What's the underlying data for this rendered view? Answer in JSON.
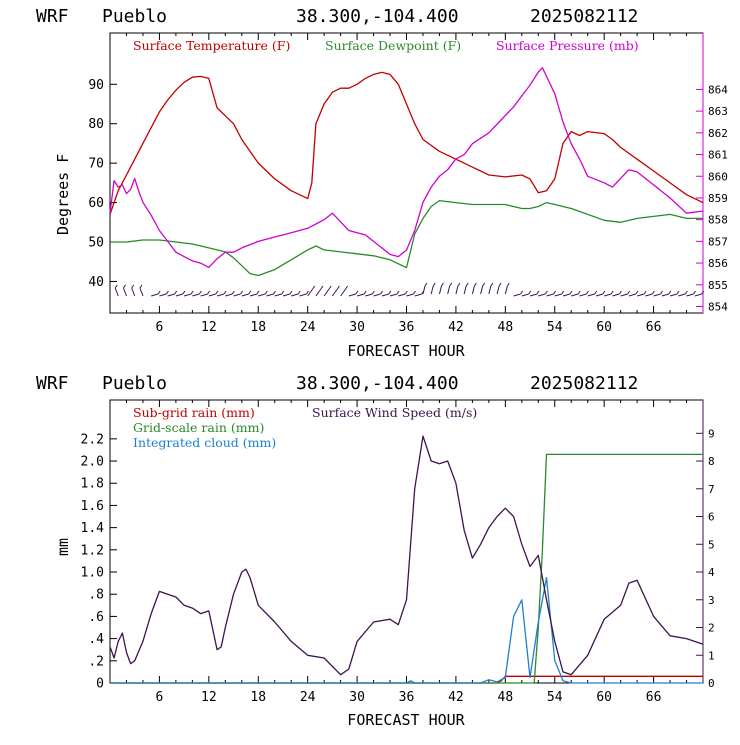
{
  "chart_data": [
    {
      "type": "line",
      "header": {
        "model": "WRF",
        "location": "Pueblo",
        "coords": "38.300,-104.400",
        "run": "2025082112"
      },
      "xlabel": "FORECAST HOUR",
      "ylabel": "Degrees F",
      "xlim": [
        0,
        72
      ],
      "ylim": [
        32,
        103
      ],
      "y2lim": [
        853.7,
        866.6
      ],
      "xticks": [
        6,
        12,
        18,
        24,
        30,
        36,
        42,
        48,
        54,
        60,
        66
      ],
      "xtick_labels": [
        "6",
        "12",
        "18",
        "24",
        "30",
        "36",
        "42",
        "48",
        "54",
        "60",
        "66"
      ],
      "yticks": [
        40,
        50,
        60,
        70,
        80,
        90
      ],
      "y2ticks": [
        854,
        855,
        856,
        857,
        858,
        859,
        860,
        861,
        862,
        863,
        864
      ],
      "series": [
        {
          "name": "Surface Temperature (F)",
          "color": "#c00000",
          "axis": "left",
          "x": [
            0,
            1,
            2,
            3,
            4,
            5,
            6,
            7,
            8,
            9,
            10,
            11,
            12,
            13,
            14,
            15,
            16,
            17,
            18,
            20,
            22,
            24,
            24.5,
            25,
            26,
            27,
            28,
            29,
            30,
            31,
            32,
            33,
            34,
            35,
            36,
            37,
            38,
            40,
            42,
            44,
            46,
            48,
            50,
            51,
            52,
            53,
            54,
            55,
            56,
            57,
            58,
            60,
            61,
            62,
            64,
            66,
            68,
            70,
            72
          ],
          "y": [
            57,
            63,
            67,
            71,
            75,
            79,
            83,
            86,
            88.5,
            90.5,
            91.8,
            92,
            91.5,
            84,
            82,
            80,
            76,
            73,
            70,
            66,
            63,
            61,
            65,
            80,
            85,
            88,
            89,
            89,
            90,
            91.5,
            92.5,
            93,
            92.5,
            90,
            85,
            80,
            76,
            73,
            71,
            69,
            67,
            66.5,
            67,
            66,
            62.5,
            63,
            66,
            75,
            78,
            77,
            78,
            77.5,
            76,
            74,
            71,
            68,
            65,
            62,
            60
          ]
        },
        {
          "name": "Surface Dewpoint (F)",
          "color": "#2a8a2a",
          "axis": "left",
          "x": [
            0,
            2,
            4,
            6,
            8,
            10,
            12,
            13,
            14,
            15,
            16,
            17,
            18,
            20,
            22,
            24,
            25,
            26,
            28,
            30,
            32,
            34,
            36,
            37,
            38,
            39,
            40,
            42,
            44,
            46,
            48,
            50,
            51,
            52,
            53,
            54,
            56,
            58,
            60,
            62,
            64,
            66,
            68,
            70,
            72
          ],
          "y": [
            50,
            50,
            50.5,
            50.5,
            50,
            49.5,
            48.5,
            48,
            47.5,
            46,
            44,
            42,
            41.5,
            43,
            45.5,
            48,
            49,
            48,
            47.5,
            47,
            46.5,
            45.5,
            43.5,
            52,
            56,
            59,
            60.5,
            60,
            59.5,
            59.5,
            59.5,
            58.5,
            58.5,
            59,
            60,
            59.5,
            58.5,
            57,
            55.5,
            55,
            56,
            56.5,
            57,
            56,
            56
          ]
        },
        {
          "name": "Surface Pressure (mb)",
          "color": "#d000d0",
          "axis": "right",
          "x": [
            0,
            0.5,
            1,
            1.5,
            2,
            2.5,
            3,
            3.5,
            4,
            5,
            6,
            7,
            8,
            9,
            10,
            11,
            12,
            13,
            14,
            15,
            16,
            18,
            20,
            22,
            24,
            25,
            26,
            27,
            28,
            29,
            30,
            31,
            32,
            33,
            34,
            35,
            36,
            37,
            38,
            39,
            40,
            41,
            42,
            43,
            44,
            46,
            48,
            49,
            50,
            51,
            52,
            52.5,
            53,
            54,
            55,
            56,
            57,
            58,
            60,
            61,
            62,
            63,
            64,
            66,
            68,
            70,
            72
          ],
          "y": [
            858.3,
            859.8,
            859.5,
            859.6,
            859.2,
            859.4,
            859.9,
            859.3,
            858.8,
            858.2,
            857.5,
            857.0,
            856.5,
            856.3,
            856.1,
            856.0,
            855.8,
            856.2,
            856.5,
            856.5,
            856.7,
            857.0,
            857.2,
            857.4,
            857.6,
            857.8,
            858.0,
            858.3,
            857.9,
            857.5,
            857.4,
            857.3,
            857.0,
            856.7,
            856.4,
            856.3,
            856.6,
            857.5,
            858.8,
            859.5,
            860.0,
            860.3,
            860.8,
            861.0,
            861.5,
            862.0,
            862.8,
            863.2,
            863.7,
            864.2,
            864.8,
            865.0,
            864.6,
            863.8,
            862.5,
            861.5,
            860.8,
            860.0,
            859.7,
            859.5,
            859.9,
            860.3,
            860.2,
            859.6,
            859.0,
            858.3,
            858.4
          ]
        }
      ],
      "wind_barbs_note": "row of wind barbs along bottom of plot"
    },
    {
      "type": "line",
      "header": {
        "model": "WRF",
        "location": "Pueblo",
        "coords": "38.300,-104.400",
        "run": "2025082112"
      },
      "xlabel": "FORECAST HOUR",
      "ylabel": "mm",
      "xlim": [
        0,
        72
      ],
      "ylim": [
        0,
        2.55
      ],
      "y2lim": [
        0,
        10.2
      ],
      "xticks": [
        6,
        12,
        18,
        24,
        30,
        36,
        42,
        48,
        54,
        60,
        66
      ],
      "xtick_labels": [
        "6",
        "12",
        "18",
        "24",
        "30",
        "36",
        "42",
        "48",
        "54",
        "60",
        "66"
      ],
      "yticks": [
        0,
        0.2,
        0.4,
        0.6,
        0.8,
        1.0,
        1.2,
        1.4,
        1.6,
        1.8,
        2.0,
        2.2
      ],
      "ytick_labels": [
        "0",
        ".2",
        ".4",
        ".6",
        ".8",
        "1.0",
        "1.2",
        "1.4",
        "1.6",
        "1.8",
        "2.0",
        "2.2"
      ],
      "y2ticks": [
        0,
        1,
        2,
        3,
        4,
        5,
        6,
        7,
        8,
        9
      ],
      "series": [
        {
          "name": "Sub-grid rain (mm)",
          "color": "#c00000",
          "axis": "left",
          "x": [
            0,
            47,
            47.5,
            48,
            72
          ],
          "y": [
            0,
            0,
            0.02,
            0.06,
            0.06
          ]
        },
        {
          "name": "Grid-scale rain (mm)",
          "color": "#2a8a2a",
          "axis": "left",
          "x": [
            0,
            51.5,
            52,
            52.5,
            53,
            72
          ],
          "y": [
            0,
            0,
            0.5,
            1.2,
            2.06,
            2.06
          ]
        },
        {
          "name": "Integrated cloud (mm)",
          "color": "#1e7fd0",
          "axis": "left",
          "x": [
            0,
            36,
            36.5,
            37,
            45,
            46,
            47,
            48,
            49,
            50,
            51,
            52,
            53,
            54,
            55,
            56,
            72
          ],
          "y": [
            0,
            0,
            0.02,
            0,
            0,
            0.03,
            0.01,
            0.05,
            0.6,
            0.75,
            0.05,
            0.55,
            0.95,
            0.2,
            0.02,
            0,
            0
          ]
        },
        {
          "name": "Surface Wind Speed (m/s)",
          "color": "#3c1450",
          "axis": "right",
          "x": [
            0,
            0.5,
            1,
            1.5,
            2,
            2.5,
            3,
            4,
            5,
            6,
            7,
            8,
            9,
            10,
            11,
            12,
            13,
            13.5,
            14,
            15,
            16,
            16.5,
            17,
            18,
            20,
            22,
            24,
            26,
            28,
            29,
            30,
            32,
            34,
            35,
            36,
            37,
            38,
            39,
            40,
            41,
            42,
            43,
            44,
            45,
            46,
            47,
            48,
            49,
            50,
            51,
            52,
            53,
            54,
            55,
            56,
            58,
            60,
            62,
            63,
            64,
            66,
            68,
            70,
            72
          ],
          "y": [
            1.3,
            0.9,
            1.5,
            1.8,
            1.1,
            0.7,
            0.8,
            1.5,
            2.5,
            3.3,
            3.2,
            3.1,
            2.8,
            2.7,
            2.5,
            2.6,
            1.2,
            1.3,
            2.0,
            3.2,
            4.0,
            4.1,
            3.8,
            2.8,
            2.2,
            1.5,
            1.0,
            0.9,
            0.3,
            0.5,
            1.5,
            2.2,
            2.3,
            2.1,
            3.0,
            7.0,
            8.9,
            8.0,
            7.9,
            8.0,
            7.2,
            5.5,
            4.5,
            5.0,
            5.6,
            6.0,
            6.3,
            6.0,
            5.0,
            4.2,
            4.6,
            3.0,
            1.5,
            0.4,
            0.3,
            1.0,
            2.3,
            2.8,
            3.6,
            3.7,
            2.4,
            1.7,
            1.6,
            1.4
          ]
        }
      ]
    }
  ]
}
